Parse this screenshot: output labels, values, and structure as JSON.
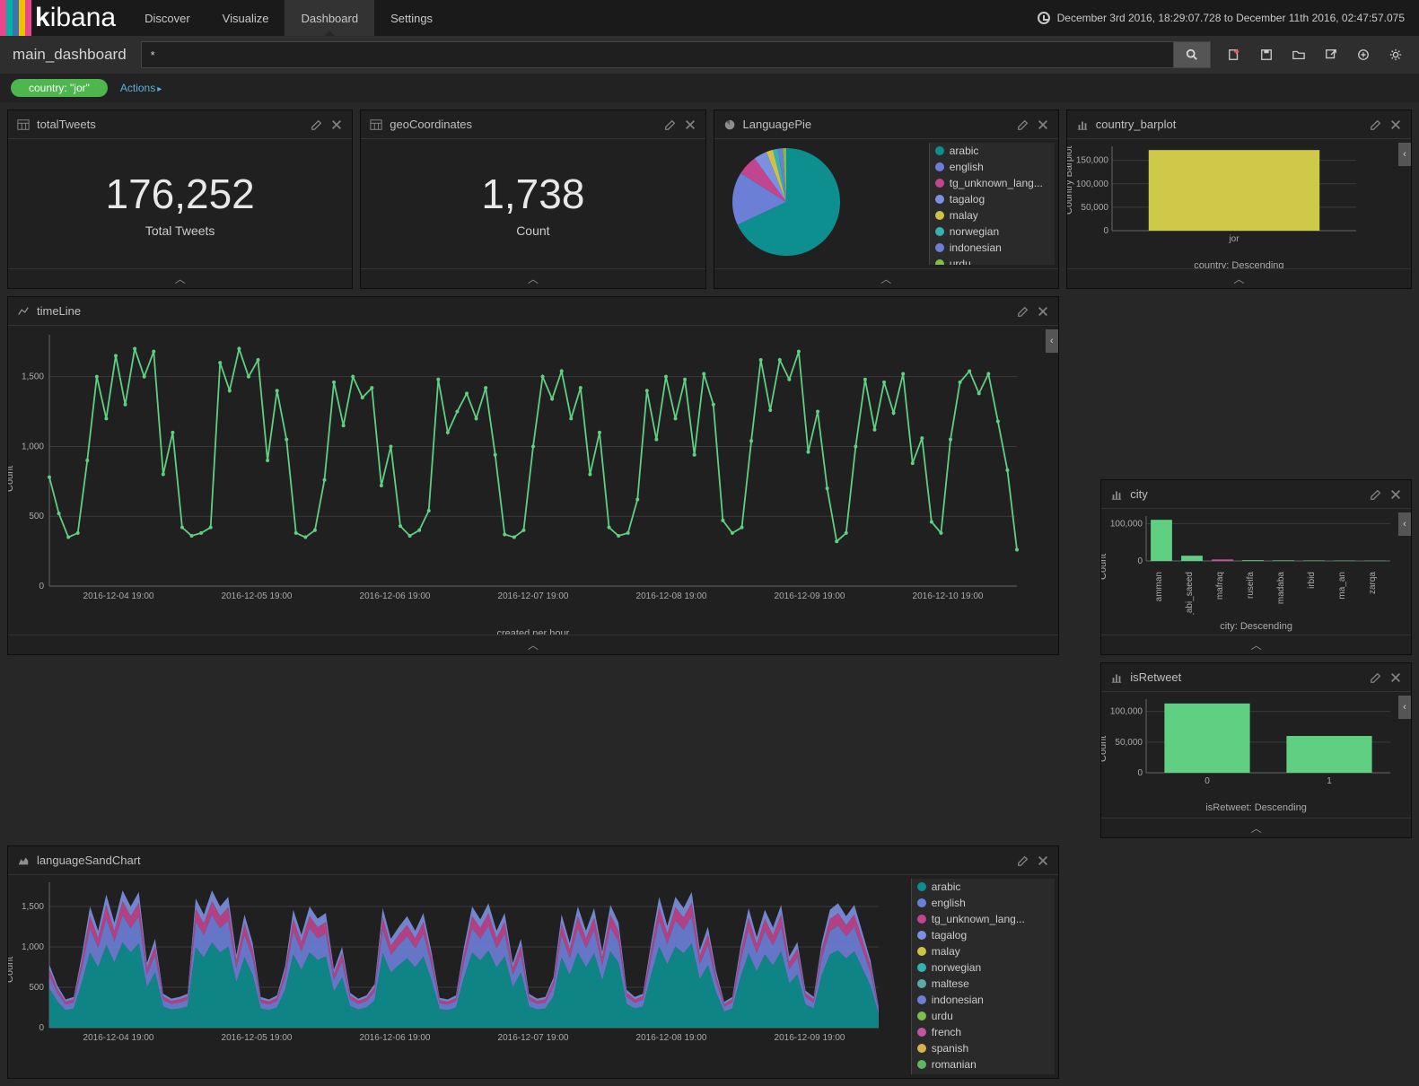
{
  "logo": {
    "stripes": [
      "#e8488b",
      "#00b3a4",
      "#3b73af",
      "#efc100",
      "#e8488b"
    ],
    "text_a": "k",
    "text_b": "ibana"
  },
  "nav": {
    "items": [
      "Discover",
      "Visualize",
      "Dashboard",
      "Settings"
    ],
    "active": 2
  },
  "time_range": "December 3rd 2016, 18:29:07.728 to December 11th 2016, 02:47:57.075",
  "dashboard_name": "main_dashboard",
  "search": {
    "value": "*",
    "placeholder": ""
  },
  "toolbar_icons": [
    "new-dashboard",
    "save",
    "open",
    "share",
    "add",
    "settings"
  ],
  "filter": {
    "label": "country: \"jor\"",
    "color": "#4db74d"
  },
  "actions_label": "Actions",
  "palette": {
    "arabic": "#0d8f8f",
    "english": "#6b7fd7",
    "tg_unknown": "#c2458f",
    "tagalog": "#7b90e0",
    "malay": "#cfc04a",
    "norwegian": "#34b2b2",
    "indonesian": "#6b7fd7",
    "urdu": "#7bbf4a",
    "maltese": "#5fa8a8",
    "french": "#c254a0",
    "spanish": "#d7b24a",
    "romanian": "#5fb85f",
    "green_line": "#5fcf82",
    "bar_green": "#5fcf82",
    "bar_yellow": "#cfc94a"
  },
  "panels": {
    "totalTweets": {
      "title": "totalTweets",
      "type": "metric",
      "value": "176,252",
      "label": "Total Tweets"
    },
    "geo": {
      "title": "geoCoordinates",
      "type": "metric",
      "value": "1,738",
      "label": "Count"
    },
    "pie": {
      "title": "LanguagePie",
      "type": "pie",
      "slices": [
        {
          "label": "arabic",
          "value": 68,
          "color": "#0d8f8f"
        },
        {
          "label": "english",
          "value": 16,
          "color": "#6b7fd7"
        },
        {
          "label": "tg_unknown_lang...",
          "value": 6,
          "color": "#c2458f"
        },
        {
          "label": "tagalog",
          "value": 4,
          "color": "#7b90e0"
        },
        {
          "label": "malay",
          "value": 2,
          "color": "#cfc04a"
        },
        {
          "label": "norwegian",
          "value": 1.5,
          "color": "#34b2b2"
        },
        {
          "label": "indonesian",
          "value": 1.5,
          "color": "#6b7fd7"
        },
        {
          "label": "urdu",
          "value": 1,
          "color": "#7bbf4a"
        }
      ]
    },
    "country": {
      "title": "country_barplot",
      "type": "bar",
      "ylabel": "Country Barplot",
      "xlabel": "country: Descending",
      "ylim": [
        0,
        180000
      ],
      "yticks": [
        0,
        50000,
        100000,
        150000
      ],
      "bars": [
        {
          "label": "jor",
          "value": 172000,
          "color": "#cfc94a"
        }
      ]
    },
    "timeline": {
      "title": "timeLine",
      "type": "line",
      "ylabel": "Count",
      "xlabel": "created per hour",
      "ylim": [
        0,
        1800
      ],
      "yticks": [
        0,
        500,
        1000,
        1500
      ],
      "xticks": [
        "2016-12-04 19:00",
        "2016-12-05 19:00",
        "2016-12-06 19:00",
        "2016-12-07 19:00",
        "2016-12-08 19:00",
        "2016-12-09 19:00",
        "2016-12-10 19:00"
      ],
      "color": "#5fcf82",
      "values": [
        780,
        520,
        350,
        380,
        900,
        1500,
        1200,
        1650,
        1300,
        1700,
        1500,
        1680,
        800,
        1100,
        420,
        360,
        380,
        420,
        1600,
        1400,
        1700,
        1500,
        1620,
        900,
        1400,
        1050,
        380,
        350,
        400,
        760,
        1460,
        1150,
        1500,
        1350,
        1420,
        720,
        1000,
        430,
        360,
        400,
        540,
        1480,
        1100,
        1250,
        1380,
        1200,
        1420,
        940,
        370,
        350,
        400,
        1000,
        1500,
        1340,
        1540,
        1200,
        1420,
        800,
        1100,
        420,
        360,
        380,
        620,
        1400,
        1050,
        1500,
        1200,
        1480,
        940,
        1520,
        1300,
        470,
        380,
        420,
        1040,
        1620,
        1260,
        1620,
        1480,
        1680,
        960,
        1250,
        700,
        320,
        380,
        1000,
        1480,
        1120,
        1460,
        1240,
        1520,
        880,
        1060,
        460,
        380,
        1050,
        1460,
        1540,
        1380,
        1520,
        1180,
        830,
        260
      ]
    },
    "city": {
      "title": "city",
      "type": "bar",
      "ylabel": "Count",
      "xlabel": "city: Descending",
      "ylim": [
        0,
        120000
      ],
      "yticks": [
        0,
        100000
      ],
      "bars": [
        {
          "label": "amman",
          "value": 110000,
          "color": "#5fcf82"
        },
        {
          "label": "der_abi_saeed",
          "value": 14000,
          "color": "#5fcf82"
        },
        {
          "label": "mafraq",
          "value": 4000,
          "color": "#c254a0"
        },
        {
          "label": "ruseifa",
          "value": 2000,
          "color": "#5fcf82"
        },
        {
          "label": "madaba",
          "value": 1500,
          "color": "#5fcf82"
        },
        {
          "label": "irbid",
          "value": 1200,
          "color": "#5fcf82"
        },
        {
          "label": "ma_an",
          "value": 900,
          "color": "#5fcf82"
        },
        {
          "label": "zarqa",
          "value": 700,
          "color": "#5fcf82"
        }
      ]
    },
    "retweet": {
      "title": "isRetweet",
      "type": "bar",
      "ylabel": "Count",
      "xlabel": "isRetweet: Descending",
      "ylim": [
        0,
        120000
      ],
      "yticks": [
        0,
        50000,
        100000
      ],
      "bars": [
        {
          "label": "0",
          "value": 113000,
          "color": "#5fcf82"
        },
        {
          "label": "1",
          "value": 60000,
          "color": "#5fcf82"
        }
      ]
    },
    "sand": {
      "title": "languageSandChart",
      "type": "area",
      "ylabel": "Count",
      "ylim": [
        0,
        1800
      ],
      "yticks": [
        0,
        500,
        1000,
        1500
      ],
      "xticks": [
        "2016-12-04 19:00",
        "2016-12-05 19:00",
        "2016-12-06 19:00",
        "2016-12-07 19:00",
        "2016-12-08 19:00",
        "2016-12-09 19:00"
      ],
      "legend": [
        {
          "label": "arabic",
          "color": "#0d8f8f"
        },
        {
          "label": "english",
          "color": "#6b7fd7"
        },
        {
          "label": "tg_unknown_lang...",
          "color": "#c2458f"
        },
        {
          "label": "tagalog",
          "color": "#7b90e0"
        },
        {
          "label": "malay",
          "color": "#cfc04a"
        },
        {
          "label": "norwegian",
          "color": "#34b2b2"
        },
        {
          "label": "maltese",
          "color": "#5fa8a8"
        },
        {
          "label": "indonesian",
          "color": "#6b7fd7"
        },
        {
          "label": "urdu",
          "color": "#7bbf4a"
        },
        {
          "label": "french",
          "color": "#c254a0"
        },
        {
          "label": "spanish",
          "color": "#d7b24a"
        },
        {
          "label": "romanian",
          "color": "#5fb85f"
        }
      ]
    }
  }
}
